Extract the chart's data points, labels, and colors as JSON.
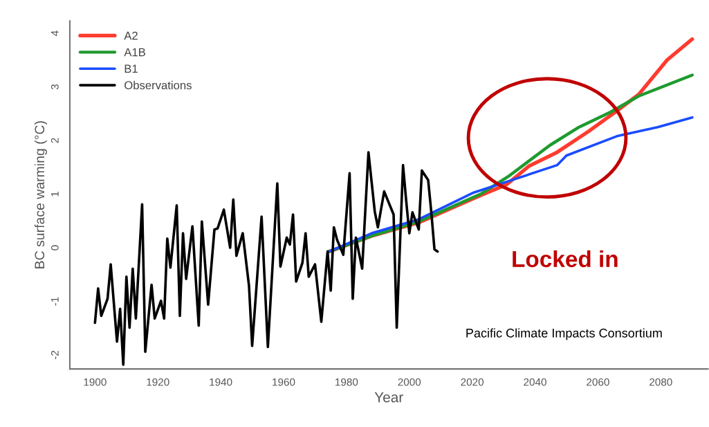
{
  "chart_data": {
    "type": "line",
    "xlabel": "Year",
    "ylabel": "BC surface warming (°C)",
    "xlim": [
      1892,
      2095
    ],
    "ylim": [
      -2.26,
      4.23
    ],
    "xticks": [
      1900,
      1920,
      1940,
      1960,
      1980,
      2000,
      2020,
      2040,
      2060,
      2080
    ],
    "yticks": [
      -2,
      -1,
      0,
      1,
      2,
      3,
      4
    ],
    "legend": "top left",
    "grid": false,
    "marker": "none",
    "line_style": "solid",
    "series": [
      {
        "name": "A2",
        "color": "#ff3b2f",
        "x": [
          1974.5,
          1988,
          2003,
          2022,
          2031,
          2038,
          2047,
          2057,
          2066,
          2073,
          2082,
          2090
        ],
        "values": [
          -0.07,
          0.22,
          0.47,
          0.96,
          1.18,
          1.52,
          1.78,
          2.17,
          2.55,
          2.86,
          3.5,
          3.89
        ]
      },
      {
        "name": "A1B",
        "color": "#1f9a2f",
        "x": [
          1974.5,
          1988,
          2003,
          2023,
          2031.5,
          2044.7,
          2054,
          2064,
          2073,
          2090
        ],
        "values": [
          -0.07,
          0.22,
          0.49,
          1.01,
          1.33,
          1.91,
          2.25,
          2.53,
          2.83,
          3.22
        ]
      },
      {
        "name": "B1",
        "color": "#1a4cff",
        "x": [
          1974.5,
          1988,
          2003,
          2020.5,
          2031.5,
          2047,
          2050,
          2066,
          2079,
          2090
        ],
        "values": [
          -0.07,
          0.27,
          0.53,
          1.03,
          1.24,
          1.54,
          1.72,
          2.08,
          2.25,
          2.43
        ]
      },
      {
        "name": "Observations",
        "color": "#000000",
        "x": [
          1900,
          1901,
          1902,
          1904,
          1905,
          1907,
          1908,
          1909,
          1910,
          1911,
          1912,
          1913,
          1915,
          1916,
          1918,
          1919,
          1921,
          1922,
          1923,
          1924,
          1926,
          1927,
          1928,
          1929,
          1931,
          1933,
          1934,
          1936,
          1938,
          1939,
          1941,
          1943,
          1944,
          1945,
          1947,
          1949,
          1950,
          1953,
          1955,
          1958,
          1959,
          1961,
          1962,
          1963,
          1964,
          1966,
          1967,
          1968,
          1970,
          1972,
          1974,
          1975,
          1976,
          1977,
          1979,
          1981,
          1982,
          1983,
          1985,
          1987,
          1989,
          1990,
          1992,
          1995,
          1996,
          1998,
          1999,
          2000,
          2001,
          2003,
          2004,
          2006,
          2007,
          2008,
          2009
        ],
        "values": [
          -1.4,
          -0.76,
          -1.27,
          -0.95,
          -0.31,
          -1.75,
          -1.14,
          -2.18,
          -0.54,
          -1.49,
          -0.39,
          -1.32,
          0.81,
          -1.94,
          -0.69,
          -1.32,
          -0.99,
          -1.32,
          0.17,
          -0.37,
          0.79,
          -1.27,
          0.27,
          -0.58,
          0.4,
          -1.45,
          0.49,
          -1.06,
          0.34,
          0.36,
          0.71,
          0.0,
          0.9,
          -0.15,
          0.27,
          -0.71,
          -1.83,
          0.58,
          -1.85,
          1.2,
          -0.35,
          0.19,
          0.06,
          0.62,
          -0.63,
          -0.28,
          0.27,
          -0.54,
          -0.31,
          -1.38,
          -0.07,
          -0.8,
          0.38,
          0.15,
          -0.13,
          1.39,
          -0.95,
          0.19,
          -0.39,
          1.78,
          0.68,
          0.38,
          1.05,
          0.62,
          -1.49,
          1.54,
          0.88,
          0.27,
          0.66,
          0.34,
          1.44,
          1.26,
          0.66,
          -0.03,
          -0.07
        ]
      }
    ],
    "annotations": [
      "Locked in",
      "Pacific Climate Impacts Consortium"
    ]
  }
}
